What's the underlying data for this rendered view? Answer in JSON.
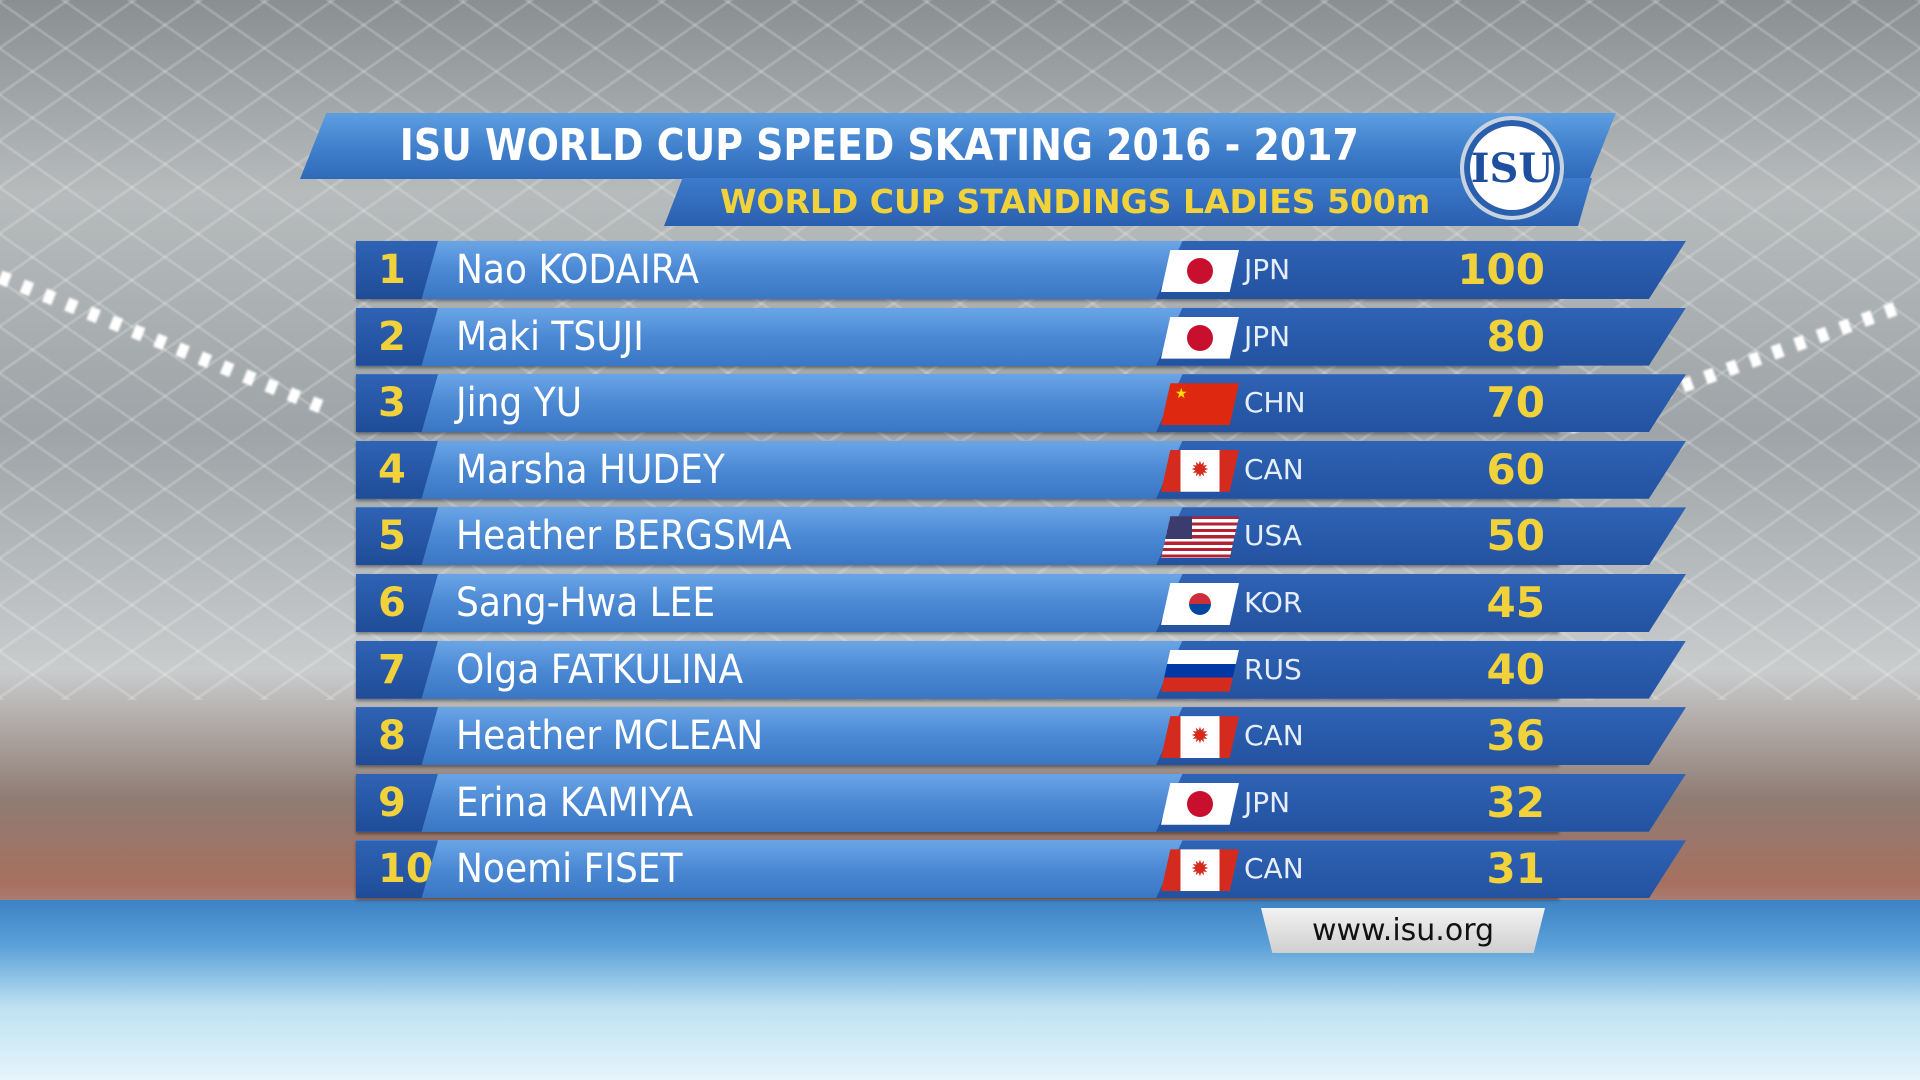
{
  "header": {
    "title": "ISU WORLD CUP SPEED SKATING 2016 - 2017",
    "subtitle": "WORLD CUP STANDINGS LADIES 500m",
    "logo_text": "ISU"
  },
  "colors": {
    "accent_yellow": "#f2d23a",
    "banner_blue": "#3f7fcc",
    "dark_blue": "#2352a0"
  },
  "standings": [
    {
      "rank": "1",
      "name": "Nao KODAIRA",
      "country": "JPN",
      "points": "100"
    },
    {
      "rank": "2",
      "name": "Maki TSUJI",
      "country": "JPN",
      "points": "80"
    },
    {
      "rank": "3",
      "name": "Jing YU",
      "country": "CHN",
      "points": "70"
    },
    {
      "rank": "4",
      "name": "Marsha HUDEY",
      "country": "CAN",
      "points": "60"
    },
    {
      "rank": "5",
      "name": "Heather BERGSMA",
      "country": "USA",
      "points": "50"
    },
    {
      "rank": "6",
      "name": "Sang-Hwa LEE",
      "country": "KOR",
      "points": "45"
    },
    {
      "rank": "7",
      "name": "Olga FATKULINA",
      "country": "RUS",
      "points": "40"
    },
    {
      "rank": "8",
      "name": "Heather MCLEAN",
      "country": "CAN",
      "points": "36"
    },
    {
      "rank": "9",
      "name": "Erina KAMIYA",
      "country": "JPN",
      "points": "32"
    },
    {
      "rank": "10",
      "name": "Noemi FISET",
      "country": "CAN",
      "points": "31"
    }
  ],
  "footer": {
    "website": "www.isu.org"
  }
}
